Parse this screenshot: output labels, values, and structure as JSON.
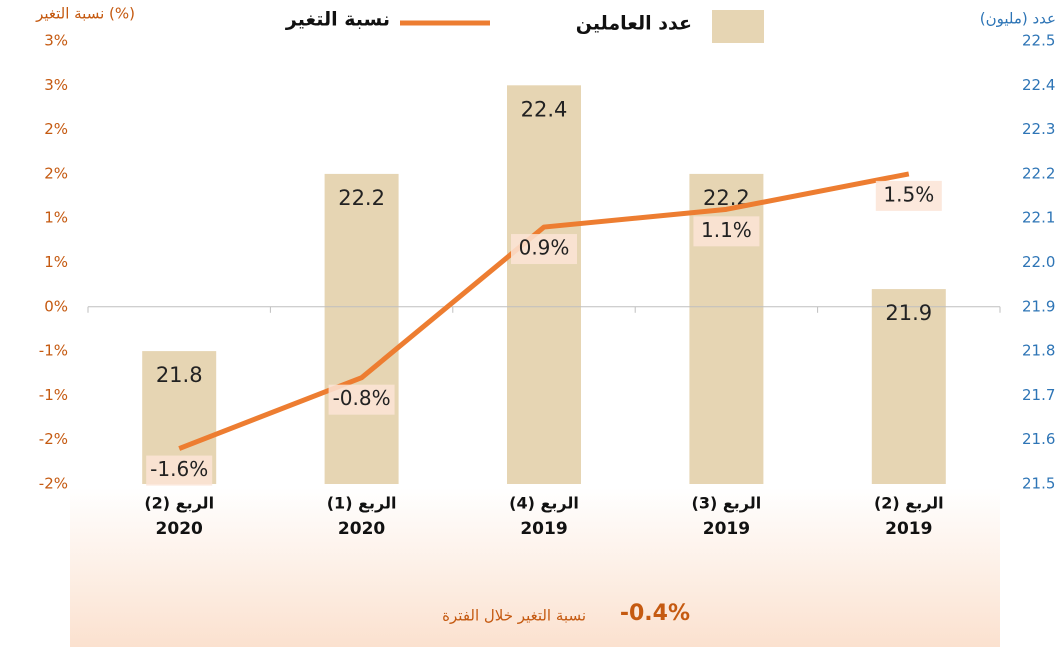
{
  "chart_data": {
    "type": "bar_line",
    "y_title": "نسبة التغير (%)",
    "y2_title": "عدد (مليون)",
    "categories": [
      [
        "الربع (2)",
        "2020"
      ],
      [
        "الربع (1)",
        "2020"
      ],
      [
        "الربع (4)",
        "2019"
      ],
      [
        "الربع (3)",
        "2019"
      ],
      [
        "الربع (2)",
        "2019"
      ]
    ],
    "series": [
      {
        "name": "عدد العاملين",
        "type": "bar",
        "axis": "y2",
        "color": "#e6d5b3",
        "values": [
          21.8,
          22.2,
          22.4,
          22.2,
          21.94
        ],
        "value_labels": [
          "21.8",
          "22.2",
          "22.4",
          "22.2",
          "21.9"
        ]
      },
      {
        "name": "نسبة التغير",
        "type": "line",
        "color": "#ed7d31",
        "values": [
          -1.6,
          -0.8,
          0.9,
          1.1,
          1.5
        ],
        "value_labels": [
          "-1.6%",
          "-0.8%",
          "0.9%",
          "1.1%",
          "1.5%"
        ]
      }
    ],
    "ylim": [
      -2,
      3
    ],
    "yticks": [
      {
        "value": 3,
        "label": "3%"
      },
      {
        "value": 2.5,
        "label": "3%"
      },
      {
        "value": 2,
        "label": "2%"
      },
      {
        "value": 1.5,
        "label": "2%"
      },
      {
        "value": 1,
        "label": "1%"
      },
      {
        "value": 0.5,
        "label": "1%"
      },
      {
        "value": 0,
        "label": "0%"
      },
      {
        "value": -0.5,
        "label": "-1%"
      },
      {
        "value": -1,
        "label": "-1%"
      },
      {
        "value": -1.5,
        "label": "-2%"
      },
      {
        "value": -2,
        "label": "-2%"
      }
    ],
    "y2lim": [
      21.5,
      22.5
    ],
    "y2ticks": [
      22.5,
      22.4,
      22.3,
      22.2,
      22.1,
      {
        "value": 22,
        "label": "22.0"
      },
      21.9,
      21.8,
      21.7,
      21.6,
      21.5
    ],
    "footer": {
      "value": "-0.4%",
      "label": "نسبة التغير خلال الفترة"
    }
  }
}
